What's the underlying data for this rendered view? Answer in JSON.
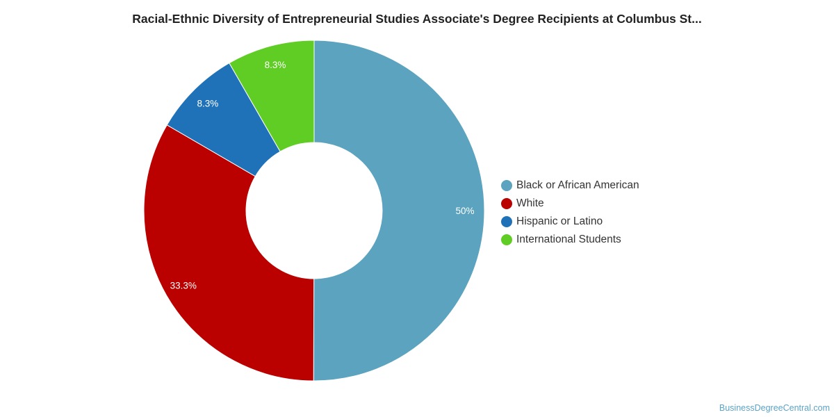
{
  "chart_data": {
    "type": "pie",
    "title": "Racial-Ethnic Diversity of Entrepreneurial Studies Associate's Degree Recipients at Columbus St...",
    "categories": [
      "Black or African American",
      "White",
      "Hispanic or Latino",
      "International Students"
    ],
    "values": [
      50,
      33.3,
      8.3,
      8.3
    ],
    "labels": [
      "50%",
      "33.3%",
      "8.3%",
      "8.3%"
    ],
    "colors": [
      "#5ba3be",
      "#bb0000",
      "#1f72b8",
      "#5fcd24"
    ],
    "donut": true,
    "legend_position": "right"
  },
  "watermark": "BusinessDegreeCentral.com"
}
